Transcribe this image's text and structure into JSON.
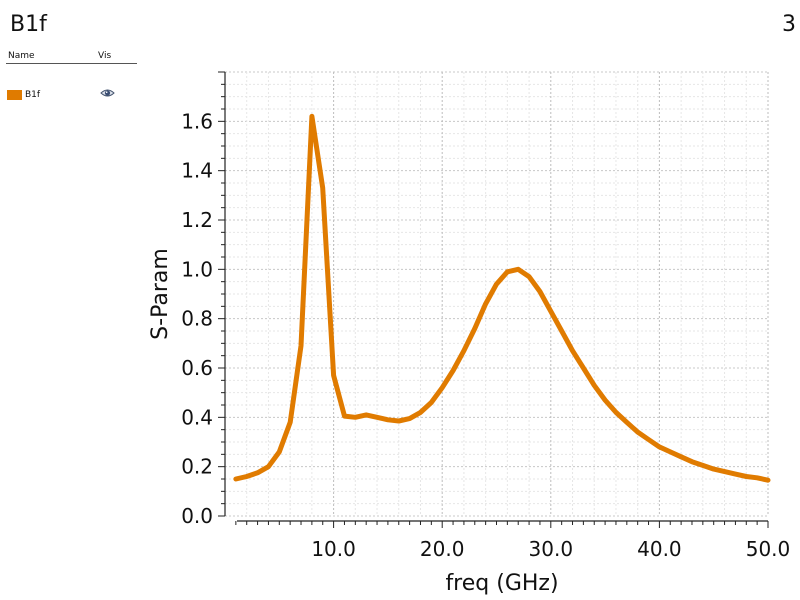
{
  "header": {
    "title": "B1f",
    "page_number": "3"
  },
  "legend": {
    "col_name": "Name",
    "col_vis": "Vis",
    "items": [
      {
        "label": "B1f",
        "color": "#e07b00",
        "visible_icon": "eye-icon"
      }
    ]
  },
  "chart_data": {
    "type": "line",
    "xlabel": "freq (GHz)",
    "ylabel": "S-Param",
    "xlim": [
      0,
      50
    ],
    "ylim": [
      0,
      1.8
    ],
    "x_ticks": [
      10,
      20,
      30,
      40,
      50
    ],
    "x_tick_labels": [
      "10.0",
      "20.0",
      "30.0",
      "40.0",
      "50.0"
    ],
    "y_ticks": [
      0,
      0.2,
      0.4,
      0.6,
      0.8,
      1.0,
      1.2,
      1.4,
      1.6
    ],
    "y_tick_labels": [
      "0.0",
      "0.2",
      "0.4",
      "0.6",
      "0.8",
      "1.0",
      "1.2",
      "1.4",
      "1.6"
    ],
    "grid": true,
    "series": [
      {
        "name": "B1f",
        "color": "#e07b00",
        "x": [
          1,
          2,
          3,
          4,
          5,
          6,
          7,
          8,
          9,
          10,
          11,
          12,
          13,
          14,
          15,
          16,
          17,
          18,
          19,
          20,
          21,
          22,
          23,
          24,
          25,
          26,
          27,
          28,
          29,
          30,
          31,
          32,
          33,
          34,
          35,
          36,
          37,
          38,
          39,
          40,
          41,
          42,
          43,
          44,
          45,
          46,
          47,
          48,
          49,
          50
        ],
        "y": [
          0.15,
          0.16,
          0.175,
          0.2,
          0.26,
          0.38,
          0.69,
          1.62,
          1.33,
          0.57,
          0.405,
          0.4,
          0.41,
          0.4,
          0.39,
          0.385,
          0.395,
          0.42,
          0.46,
          0.52,
          0.59,
          0.67,
          0.76,
          0.86,
          0.94,
          0.99,
          1.0,
          0.97,
          0.91,
          0.83,
          0.75,
          0.67,
          0.6,
          0.53,
          0.47,
          0.42,
          0.38,
          0.34,
          0.31,
          0.28,
          0.26,
          0.24,
          0.22,
          0.205,
          0.19,
          0.18,
          0.17,
          0.16,
          0.155,
          0.145
        ]
      }
    ]
  }
}
